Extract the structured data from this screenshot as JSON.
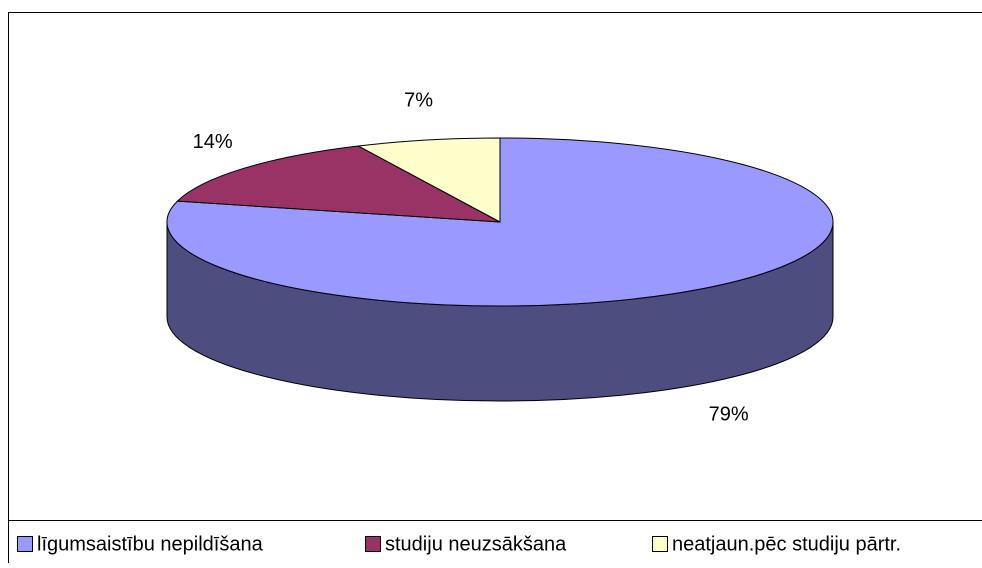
{
  "chart_data": {
    "type": "pie",
    "categories": [
      "līgumsaistību nepildīšana",
      "studiju neuzsākšana",
      "neatjaun.pēc studiju pārtr."
    ],
    "values": [
      79,
      14,
      7
    ],
    "value_labels": [
      "79%",
      "14%",
      "7%"
    ],
    "colors": [
      "#9999ff",
      "#993366",
      "#ffffcc"
    ],
    "legend": "bottom"
  }
}
